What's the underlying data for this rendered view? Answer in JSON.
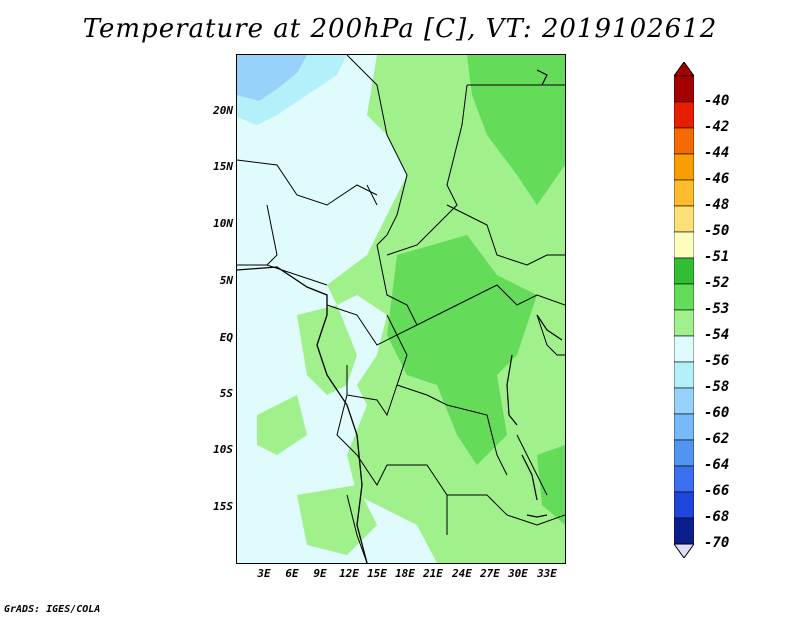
{
  "title": "Temperature at 200hPa [C], VT: 2019102612",
  "credit": "GrADS: IGES/COLA",
  "axes": {
    "lat_labels": [
      "20N",
      "15N",
      "10N",
      "5N",
      "EQ",
      "5S",
      "10S",
      "15S"
    ],
    "lon_labels": [
      "3E",
      "6E",
      "9E",
      "12E",
      "15E",
      "18E",
      "21E",
      "24E",
      "27E",
      "30E",
      "33E"
    ]
  },
  "colorbar": {
    "labels": [
      "-40",
      "-42",
      "-44",
      "-46",
      "-48",
      "-50",
      "-51",
      "-52",
      "-53",
      "-54",
      "-56",
      "-58",
      "-60",
      "-62",
      "-64",
      "-66",
      "-68",
      "-70"
    ],
    "colors": [
      "#a50000",
      "#e81e00",
      "#f46a00",
      "#f99d00",
      "#fcbc2d",
      "#fde07a",
      "#fdfdbe",
      "#32be32",
      "#64dc5a",
      "#a0f08c",
      "#e0fbfb",
      "#b4f0fa",
      "#96d2fa",
      "#78b9fa",
      "#5096f0",
      "#3c6ef0",
      "#1e46dc",
      "#0a1e8c"
    ],
    "under_color": "#dcdcf5",
    "over_color": "#a50000"
  }
}
